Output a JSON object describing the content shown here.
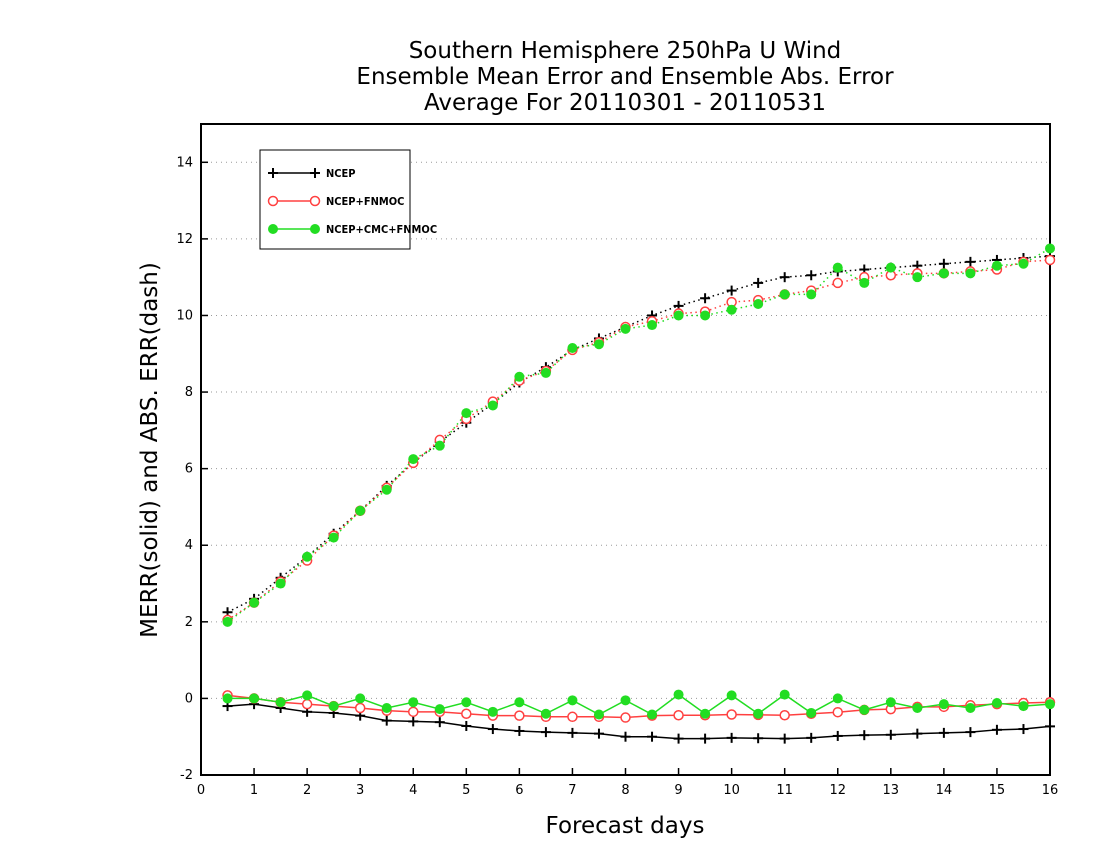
{
  "chart_data": {
    "type": "line",
    "title": [
      "Southern Hemisphere 250hPa U Wind",
      "Ensemble Mean Error and Ensemble Abs. Error",
      "Average For 20110301 - 20110531"
    ],
    "xlabel": "Forecast days",
    "ylabel": "MERR(solid) and ABS. ERR(dash)",
    "xlim": [
      0,
      16
    ],
    "ylim": [
      -2,
      15
    ],
    "xticks": [
      0,
      1,
      2,
      3,
      4,
      5,
      6,
      7,
      8,
      9,
      10,
      11,
      12,
      13,
      14,
      15,
      16
    ],
    "yticks": [
      -2,
      0,
      2,
      4,
      6,
      8,
      10,
      12,
      14
    ],
    "grid": "horizontal dotted",
    "legend_position": "top-left",
    "x": [
      0.5,
      1,
      1.5,
      2,
      2.5,
      3,
      3.5,
      4,
      4.5,
      5,
      5.5,
      6,
      6.5,
      7,
      7.5,
      8,
      8.5,
      9,
      9.5,
      10,
      10.5,
      11,
      11.5,
      12,
      12.5,
      13,
      13.5,
      14,
      14.5,
      15,
      15.5,
      16
    ],
    "series": [
      {
        "name": "NCEP",
        "color": "#000000",
        "marker": "plus",
        "merr": [
          -0.2,
          -0.15,
          -0.25,
          -0.35,
          -0.38,
          -0.45,
          -0.58,
          -0.6,
          -0.62,
          -0.72,
          -0.8,
          -0.85,
          -0.88,
          -0.9,
          -0.92,
          -1.0,
          -1.0,
          -1.05,
          -1.05,
          -1.03,
          -1.04,
          -1.05,
          -1.03,
          -0.98,
          -0.96,
          -0.95,
          -0.92,
          -0.9,
          -0.88,
          -0.82,
          -0.8,
          -0.73
        ],
        "abs_err": [
          2.25,
          2.6,
          3.15,
          3.7,
          4.3,
          4.9,
          5.55,
          6.15,
          6.7,
          7.2,
          7.7,
          8.25,
          8.65,
          9.1,
          9.4,
          9.7,
          10.0,
          10.25,
          10.45,
          10.65,
          10.85,
          11.0,
          11.05,
          11.15,
          11.2,
          11.25,
          11.3,
          11.35,
          11.4,
          11.45,
          11.5,
          11.55
        ]
      },
      {
        "name": "NCEP+FNMOC",
        "color": "#ff4040",
        "marker": "open-circle",
        "merr": [
          0.08,
          0.0,
          -0.1,
          -0.15,
          -0.2,
          -0.25,
          -0.32,
          -0.35,
          -0.35,
          -0.4,
          -0.45,
          -0.45,
          -0.48,
          -0.48,
          -0.48,
          -0.5,
          -0.45,
          -0.44,
          -0.44,
          -0.42,
          -0.43,
          -0.44,
          -0.4,
          -0.36,
          -0.3,
          -0.28,
          -0.22,
          -0.22,
          -0.18,
          -0.15,
          -0.12,
          -0.1
        ],
        "abs_err": [
          2.05,
          2.5,
          3.05,
          3.6,
          4.25,
          4.9,
          5.5,
          6.15,
          6.75,
          7.3,
          7.75,
          8.3,
          8.55,
          9.1,
          9.3,
          9.7,
          9.85,
          10.05,
          10.1,
          10.35,
          10.4,
          10.55,
          10.65,
          10.85,
          11.0,
          11.05,
          11.1,
          11.1,
          11.15,
          11.2,
          11.4,
          11.45
        ]
      },
      {
        "name": "NCEP+CMC+FNMOC",
        "color": "#22dd22",
        "marker": "filled-circle",
        "merr": [
          0.0,
          0.0,
          -0.1,
          0.08,
          -0.2,
          0.0,
          -0.25,
          -0.1,
          -0.28,
          -0.1,
          -0.35,
          -0.1,
          -0.4,
          -0.05,
          -0.42,
          -0.05,
          -0.42,
          0.1,
          -0.4,
          0.08,
          -0.4,
          0.1,
          -0.38,
          0.0,
          -0.3,
          -0.1,
          -0.25,
          -0.15,
          -0.25,
          -0.12,
          -0.2,
          -0.15
        ],
        "abs_err": [
          2.0,
          2.5,
          3.0,
          3.7,
          4.2,
          4.9,
          5.45,
          6.25,
          6.6,
          7.45,
          7.65,
          8.4,
          8.5,
          9.15,
          9.25,
          9.65,
          9.75,
          10.0,
          10.0,
          10.15,
          10.3,
          10.55,
          10.55,
          11.25,
          10.85,
          11.25,
          11.0,
          11.1,
          11.1,
          11.3,
          11.35,
          11.75
        ]
      }
    ]
  }
}
